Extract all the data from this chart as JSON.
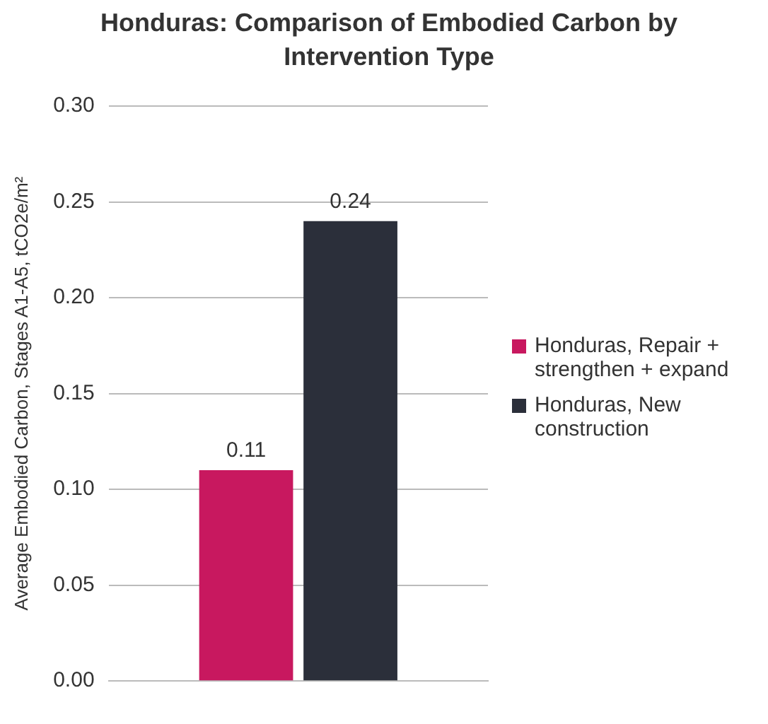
{
  "chart_data": {
    "type": "bar",
    "title": "Honduras: Comparison of Embodied Carbon by Intervention Type",
    "ylabel": "Average Embodied Carbon, Stages A1-A5, tCO2e/m²",
    "categories": [
      null
    ],
    "series": [
      {
        "name": "Honduras, Repair + strengthen + expand",
        "color": "#c8185f",
        "values": [
          0.11
        ]
      },
      {
        "name": "Honduras, New construction",
        "color": "#2b2f3a",
        "values": [
          0.24
        ]
      }
    ],
    "ylim": [
      0,
      0.3
    ],
    "yticks": [
      {
        "value": 0,
        "label": "0.00"
      },
      {
        "value": 0.05,
        "label": "0.05"
      },
      {
        "value": 0.1,
        "label": "0.10"
      },
      {
        "value": 0.15,
        "label": "0.15"
      },
      {
        "value": 0.2,
        "label": "0.20"
      },
      {
        "value": 0.25,
        "label": "0.25"
      },
      {
        "value": 0.3,
        "label": "0.30"
      }
    ],
    "grid": "y",
    "legend": "right",
    "data_labels": true
  }
}
